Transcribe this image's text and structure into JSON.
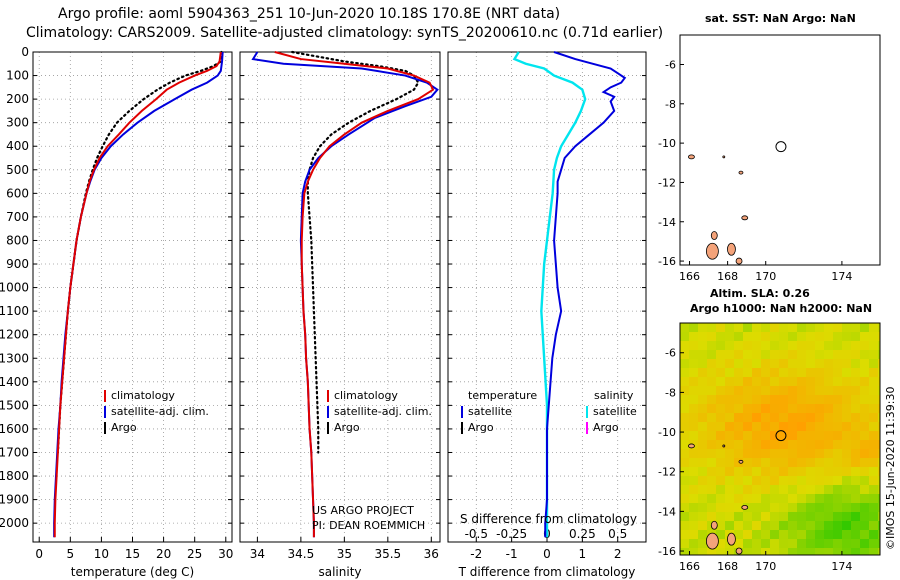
{
  "header": {
    "title_line1": "Argo profile: aoml 5904363_251 10-Jun-2020 10.18S 170.8E (NRT data)",
    "title_line2": "Climatology: CARS2009. Satellite-adjusted climatology: synTS_20200610.nc (0.71d earlier)"
  },
  "side": {
    "map1_title": "sat. SST: NaN Argo: NaN",
    "sla_text": "Altim. SLA: 0.26",
    "map2_title": "Argo h1000: NaN h2000: NaN",
    "imos_stamp": "©IMOS 15-Jun-2020 11:39:30"
  },
  "colors": {
    "climatology": "#e00000",
    "satellite": "#0000dd",
    "argo": "#000000",
    "salinity_diff": "#00e5ee",
    "argo_s": "#ff00ff"
  },
  "chart_data": [
    {
      "type": "line",
      "panel": "temperature",
      "xlabel": "temperature (deg C)",
      "xlim": [
        -1,
        31
      ],
      "ylim": [
        2080,
        0
      ],
      "xticks": [
        0,
        5,
        10,
        15,
        20,
        25,
        30
      ],
      "yticks": [
        0,
        100,
        200,
        300,
        400,
        500,
        600,
        700,
        800,
        900,
        1000,
        1100,
        1200,
        1300,
        1400,
        1500,
        1600,
        1700,
        1800,
        1900,
        2000
      ],
      "legend": [
        "climatology",
        "satellite-adj. clim.",
        "Argo"
      ],
      "series": [
        {
          "name": "climatology",
          "depth": [
            0,
            40,
            60,
            80,
            100,
            130,
            160,
            200,
            250,
            300,
            350,
            400,
            450,
            500,
            550,
            600,
            700,
            800,
            900,
            1000,
            1100,
            1200,
            1300,
            1400,
            1500,
            1600,
            1700,
            1800,
            1900,
            2000,
            2060
          ],
          "values": [
            29.2,
            29.0,
            28.5,
            27.0,
            25.0,
            22.5,
            20.5,
            18.8,
            16.5,
            14.5,
            12.8,
            11.0,
            9.7,
            8.8,
            8.1,
            7.6,
            6.7,
            6.0,
            5.5,
            5.0,
            4.6,
            4.3,
            4.0,
            3.7,
            3.4,
            3.2,
            3.0,
            2.8,
            2.6,
            2.5,
            2.5
          ]
        },
        {
          "name": "satellite-adj. clim.",
          "depth": [
            0,
            40,
            60,
            80,
            100,
            130,
            160,
            200,
            250,
            300,
            350,
            400,
            450,
            500,
            550,
            600,
            700,
            800,
            900,
            1000,
            1100,
            1200,
            1300,
            1400,
            1500,
            1600,
            1700,
            1800,
            1900,
            2000,
            2060
          ],
          "values": [
            29.5,
            29.4,
            29.3,
            29.2,
            28.7,
            27.0,
            24.5,
            21.8,
            18.5,
            15.8,
            13.5,
            11.5,
            10.0,
            8.9,
            8.2,
            7.6,
            6.7,
            6.0,
            5.5,
            5.0,
            4.6,
            4.2,
            3.9,
            3.6,
            3.4,
            3.1,
            2.9,
            2.7,
            2.5,
            2.4,
            2.4
          ]
        },
        {
          "name": "Argo",
          "depth": [
            0,
            40,
            60,
            80,
            100,
            130,
            160,
            200,
            250,
            300,
            350,
            400,
            450,
            500,
            550,
            600,
            700,
            800,
            900,
            1000,
            1100,
            1200,
            1300,
            1400,
            1500,
            1600,
            1700
          ],
          "values": [
            29.3,
            29.2,
            28.0,
            26.0,
            23.5,
            21.0,
            19.0,
            16.8,
            14.5,
            12.5,
            11.2,
            10.2,
            9.3,
            8.6,
            8.0,
            7.5,
            6.7,
            6.0,
            5.5,
            5.0,
            4.6,
            4.3,
            4.0,
            3.7,
            3.4,
            3.2,
            3.0
          ]
        }
      ]
    },
    {
      "type": "line",
      "panel": "salinity",
      "xlabel": "salinity",
      "xlim": [
        33.8,
        36.1
      ],
      "ylim": [
        2080,
        0
      ],
      "xticks": [
        34,
        34.5,
        35,
        35.5,
        36
      ],
      "legend": [
        "climatology",
        "satellite-adj. clim.",
        "Argo"
      ],
      "annotation": [
        "US ARGO PROJECT",
        "PI: DEAN ROEMMICH"
      ],
      "series": [
        {
          "name": "climatology",
          "depth": [
            0,
            30,
            50,
            70,
            100,
            130,
            160,
            200,
            250,
            300,
            350,
            400,
            450,
            500,
            550,
            600,
            700,
            800,
            900,
            1000,
            1100,
            1200,
            1300,
            1400,
            1500,
            1600,
            1700,
            1800,
            1900,
            2000,
            2060
          ],
          "values": [
            34.2,
            34.5,
            35.0,
            35.5,
            35.8,
            35.98,
            36.02,
            35.85,
            35.5,
            35.2,
            35.0,
            34.83,
            34.72,
            34.64,
            34.58,
            34.54,
            34.52,
            34.51,
            34.51,
            34.52,
            34.53,
            34.55,
            34.56,
            34.58,
            34.59,
            34.6,
            34.62,
            34.63,
            34.64,
            34.65,
            34.65
          ]
        },
        {
          "name": "satellite-adj. clim.",
          "depth": [
            0,
            30,
            50,
            70,
            100,
            130,
            160,
            190,
            230,
            280,
            350,
            400,
            450,
            500,
            550,
            600,
            700,
            800,
            900,
            1000,
            1100,
            1200,
            1300,
            1400,
            1500,
            1600,
            1700,
            1800,
            1900,
            2000,
            2060
          ],
          "values": [
            34.0,
            33.95,
            34.3,
            35.2,
            35.7,
            35.95,
            36.07,
            36.0,
            35.7,
            35.35,
            35.05,
            34.85,
            34.7,
            34.6,
            34.55,
            34.52,
            34.51,
            34.5,
            34.51,
            34.52,
            34.53,
            34.55,
            34.56,
            34.58,
            34.59,
            34.6,
            34.62,
            34.63,
            34.64,
            34.65,
            34.65
          ]
        },
        {
          "name": "Argo",
          "depth": [
            0,
            40,
            60,
            80,
            100,
            130,
            160,
            200,
            250,
            300,
            350,
            400,
            450,
            500,
            550,
            600,
            700,
            800,
            900,
            1000,
            1100,
            1200,
            1300,
            1400,
            1500,
            1600,
            1700
          ],
          "values": [
            34.4,
            35.0,
            35.4,
            35.7,
            35.8,
            35.85,
            35.8,
            35.6,
            35.3,
            35.05,
            34.85,
            34.72,
            34.64,
            34.6,
            34.58,
            34.58,
            34.6,
            34.62,
            34.63,
            34.64,
            34.65,
            34.66,
            34.67,
            34.68,
            34.69,
            34.7,
            34.7
          ]
        }
      ]
    },
    {
      "type": "line",
      "panel": "difference",
      "xlabel": "T difference from climatology",
      "x2label": "S difference from climatology",
      "xlim": [
        -2.8,
        2.8
      ],
      "ylim": [
        2080,
        0
      ],
      "xticks": [
        -2,
        -1,
        0,
        1,
        2
      ],
      "x2ticks": [
        -0.5,
        -0.25,
        0,
        0.25,
        0.5
      ],
      "x2tick_labels": [
        "-0.5",
        "-0.25",
        "0",
        "0.25",
        "0.5"
      ],
      "legend_left_title": "temperature",
      "legend_right_title": "salinity",
      "legend": [
        "satellite",
        "Argo",
        "satellite",
        "Argo"
      ],
      "series": [
        {
          "name": "satellite",
          "depth": [
            0,
            30,
            50,
            70,
            90,
            110,
            130,
            150,
            170,
            190,
            210,
            250,
            300,
            350,
            400,
            450,
            500,
            550,
            600,
            700,
            800,
            900,
            1000,
            1100,
            1200,
            1300,
            1400,
            1500,
            1600,
            1700,
            1800,
            1900,
            2000,
            2060
          ],
          "values": [
            0.2,
            0.8,
            1.3,
            1.8,
            2.0,
            2.2,
            2.1,
            1.8,
            1.6,
            1.9,
            1.8,
            1.9,
            1.6,
            1.2,
            0.8,
            0.5,
            0.4,
            0.3,
            0.3,
            0.25,
            0.2,
            0.25,
            0.3,
            0.4,
            0.25,
            0.15,
            0.1,
            0.05,
            0.0,
            0.0,
            0.0,
            0.0,
            -0.05,
            -0.05
          ]
        },
        {
          "name": "satellite S",
          "depth": [
            0,
            30,
            50,
            70,
            100,
            130,
            160,
            200,
            250,
            300,
            350,
            400,
            450,
            500,
            600,
            700,
            800,
            900,
            1000,
            1100,
            1200,
            1300,
            1400,
            1500,
            1600,
            1700,
            1800,
            1900,
            2000,
            2060
          ],
          "values": [
            -0.2,
            -0.23,
            -0.15,
            -0.02,
            0.05,
            0.18,
            0.25,
            0.27,
            0.24,
            0.2,
            0.15,
            0.1,
            0.07,
            0.05,
            0.04,
            0.02,
            0.0,
            -0.02,
            -0.03,
            -0.04,
            -0.03,
            -0.02,
            -0.01,
            0.0,
            0.0,
            0.0,
            0.0,
            0.0,
            0.0,
            0.0
          ]
        }
      ]
    }
  ],
  "maps": {
    "map1": {
      "xticks": [
        166,
        168,
        170,
        174
      ],
      "yticks": [
        -6,
        -8,
        -10,
        -12,
        -14,
        -16
      ],
      "xlim": [
        165.5,
        176
      ],
      "ylim": [
        -4.5,
        -16.2
      ],
      "argo_lon": 170.8,
      "argo_lat": -10.18
    },
    "map2": {
      "xticks": [
        166,
        168,
        170,
        174
      ],
      "yticks": [
        -6,
        -8,
        -10,
        -12,
        -14,
        -16
      ],
      "xlim": [
        165.5,
        176
      ],
      "ylim": [
        -4.5,
        -16.2
      ],
      "argo_lon": 170.8,
      "argo_lat": -10.18
    }
  }
}
